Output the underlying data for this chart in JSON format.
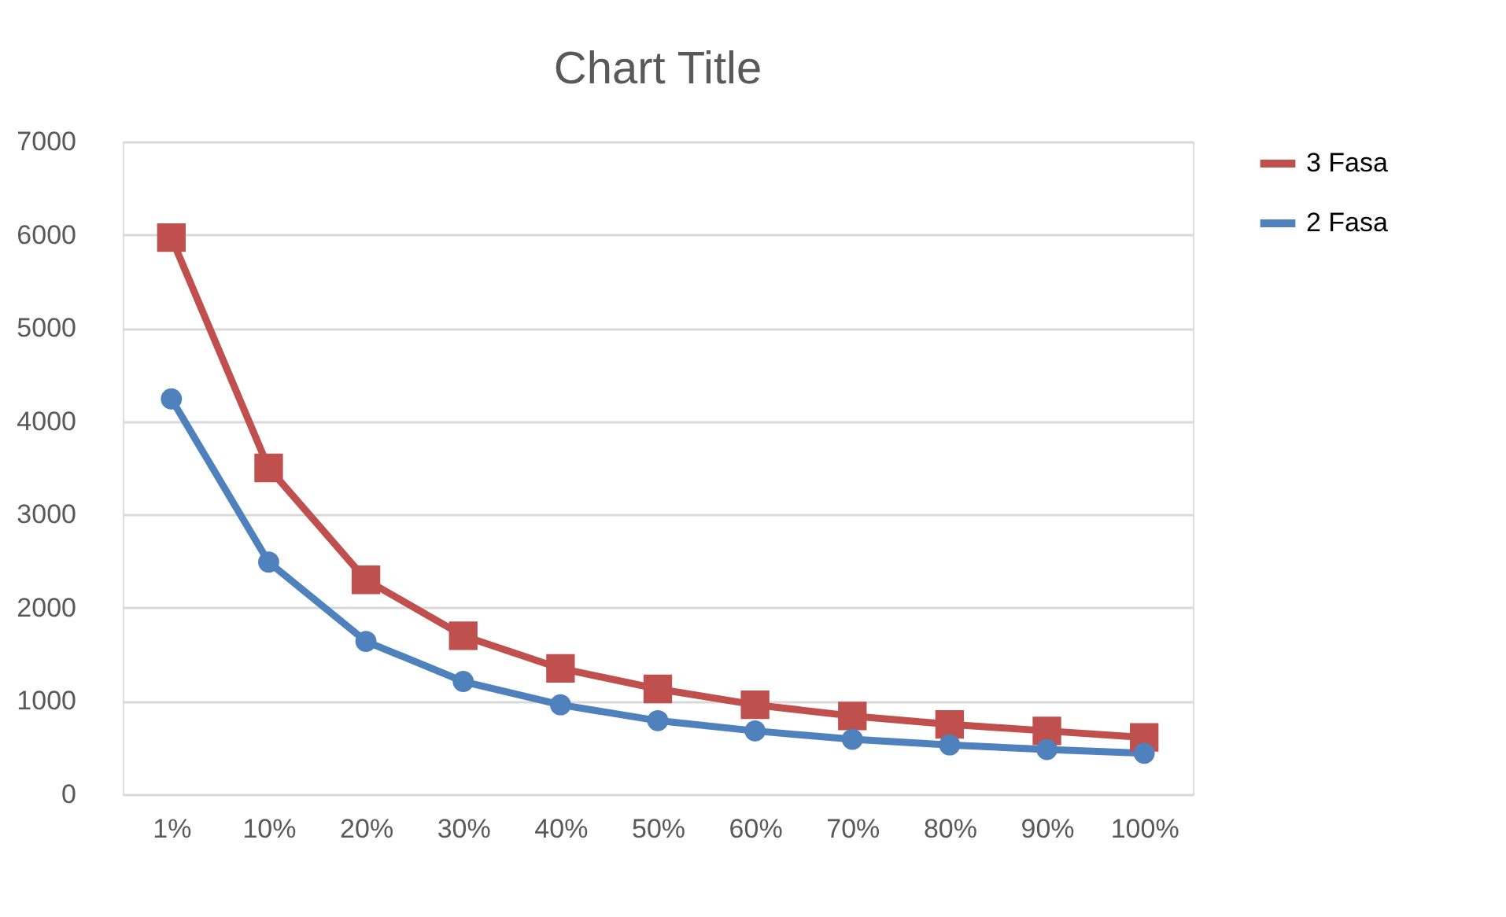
{
  "chart_data": {
    "type": "line",
    "title": "Chart Title",
    "categories": [
      "1%",
      "10%",
      "20%",
      "30%",
      "40%",
      "50%",
      "60%",
      "70%",
      "80%",
      "90%",
      "100%"
    ],
    "series": [
      {
        "name": "3 Fasa",
        "color": "#c0504d",
        "marker": "square",
        "values": [
          5970,
          3500,
          2300,
          1700,
          1350,
          1130,
          960,
          840,
          750,
          680,
          610
        ]
      },
      {
        "name": "2 Fasa",
        "color": "#4f81bd",
        "marker": "circle",
        "values": [
          4240,
          2490,
          1640,
          1210,
          960,
          790,
          680,
          590,
          530,
          480,
          440
        ]
      }
    ],
    "ylim": [
      0,
      7000
    ],
    "yticks": [
      0,
      1000,
      2000,
      3000,
      4000,
      5000,
      6000,
      7000
    ],
    "grid": "y",
    "legend": "right",
    "line_style": "solid"
  }
}
